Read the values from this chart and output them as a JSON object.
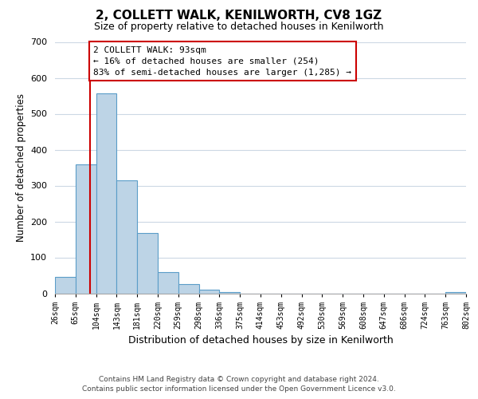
{
  "title": "2, COLLETT WALK, KENILWORTH, CV8 1GZ",
  "subtitle": "Size of property relative to detached houses in Kenilworth",
  "xlabel": "Distribution of detached houses by size in Kenilworth",
  "ylabel": "Number of detached properties",
  "bar_values": [
    45,
    360,
    557,
    315,
    168,
    60,
    25,
    10,
    3,
    0,
    0,
    0,
    0,
    0,
    0,
    0,
    0,
    0,
    0,
    3
  ],
  "bar_labels": [
    "26sqm",
    "65sqm",
    "104sqm",
    "143sqm",
    "181sqm",
    "220sqm",
    "259sqm",
    "298sqm",
    "336sqm",
    "375sqm",
    "414sqm",
    "453sqm",
    "492sqm",
    "530sqm",
    "569sqm",
    "608sqm",
    "647sqm",
    "686sqm",
    "724sqm",
    "763sqm",
    "802sqm"
  ],
  "bar_color": "#bdd4e6",
  "bar_edge_color": "#5b9dc8",
  "annotation_box_text": "2 COLLETT WALK: 93sqm\n← 16% of detached houses are smaller (254)\n83% of semi-detached houses are larger (1,285) →",
  "red_line_color": "#cc0000",
  "box_edge_color": "#cc0000",
  "ylim": [
    0,
    700
  ],
  "yticks": [
    0,
    100,
    200,
    300,
    400,
    500,
    600,
    700
  ],
  "footer_line1": "Contains HM Land Registry data © Crown copyright and database right 2024.",
  "footer_line2": "Contains public sector information licensed under the Open Government Licence v3.0.",
  "background_color": "#ffffff",
  "grid_color": "#ccd8e4"
}
